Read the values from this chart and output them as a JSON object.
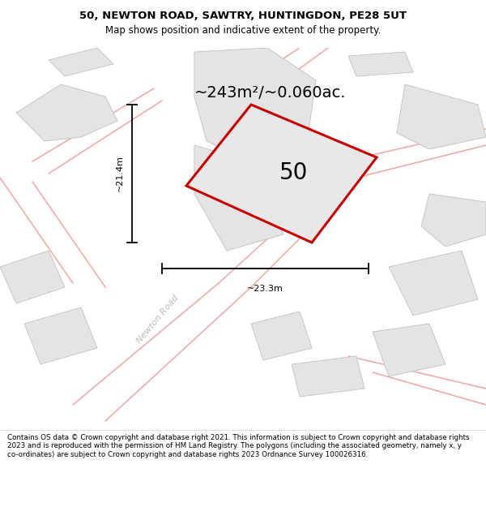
{
  "title_line1": "50, NEWTON ROAD, SAWTRY, HUNTINGDON, PE28 5UT",
  "title_line2": "Map shows position and indicative extent of the property.",
  "area_label": "~243m²/~0.060ac.",
  "property_number": "50",
  "dim_vertical": "~21.4m",
  "dim_horizontal": "~23.3m",
  "road_label": "Newton Road",
  "footer": "Contains OS data © Crown copyright and database right 2021. This information is subject to Crown copyright and database rights 2023 and is reproduced with the permission of HM Land Registry. The polygons (including the associated geometry, namely x, y co-ordinates) are subject to Crown copyright and database rights 2023 Ordnance Survey 100026316.",
  "map_bg": "#f5f5f5",
  "property_fill": "#e8e8e8",
  "property_edge": "#cc0000",
  "building_fill": "#e4e4e4",
  "building_edge": "#c0c0c0",
  "road_color": "#f2aaaa",
  "title_bg": "#ffffff",
  "footer_bg": "#ffffff",
  "title_fontsize": 9.5,
  "subtitle_fontsize": 8.5,
  "area_fontsize": 14,
  "num_fontsize": 20,
  "dim_fontsize": 8,
  "road_label_fontsize": 8,
  "footer_fontsize": 6.3
}
